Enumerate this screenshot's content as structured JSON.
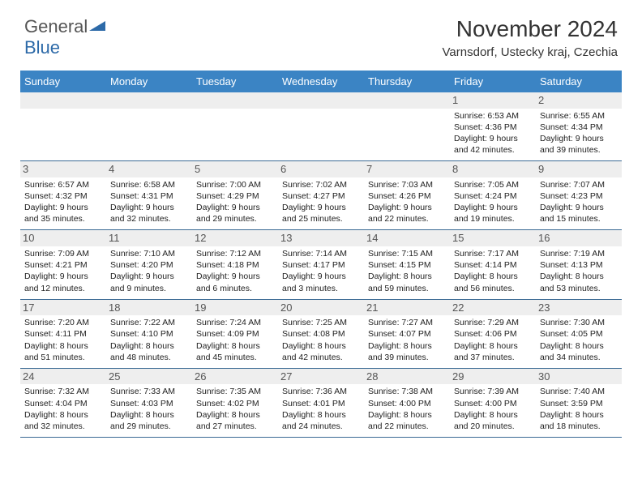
{
  "logo": {
    "part1": "General",
    "part2": "Blue"
  },
  "title": "November 2024",
  "location": "Varnsdorf, Ustecky kraj, Czechia",
  "colors": {
    "header_bg": "#3b84c4",
    "header_text": "#ffffff",
    "daynum_bg": "#eeeeee",
    "border": "#3b6a94",
    "logo_blue": "#2d6aa8",
    "text": "#222222"
  },
  "day_names": [
    "Sunday",
    "Monday",
    "Tuesday",
    "Wednesday",
    "Thursday",
    "Friday",
    "Saturday"
  ],
  "weeks": [
    [
      null,
      null,
      null,
      null,
      null,
      {
        "n": "1",
        "sr": "6:53 AM",
        "ss": "4:36 PM",
        "dl": "9 hours and 42 minutes."
      },
      {
        "n": "2",
        "sr": "6:55 AM",
        "ss": "4:34 PM",
        "dl": "9 hours and 39 minutes."
      }
    ],
    [
      {
        "n": "3",
        "sr": "6:57 AM",
        "ss": "4:32 PM",
        "dl": "9 hours and 35 minutes."
      },
      {
        "n": "4",
        "sr": "6:58 AM",
        "ss": "4:31 PM",
        "dl": "9 hours and 32 minutes."
      },
      {
        "n": "5",
        "sr": "7:00 AM",
        "ss": "4:29 PM",
        "dl": "9 hours and 29 minutes."
      },
      {
        "n": "6",
        "sr": "7:02 AM",
        "ss": "4:27 PM",
        "dl": "9 hours and 25 minutes."
      },
      {
        "n": "7",
        "sr": "7:03 AM",
        "ss": "4:26 PM",
        "dl": "9 hours and 22 minutes."
      },
      {
        "n": "8",
        "sr": "7:05 AM",
        "ss": "4:24 PM",
        "dl": "9 hours and 19 minutes."
      },
      {
        "n": "9",
        "sr": "7:07 AM",
        "ss": "4:23 PM",
        "dl": "9 hours and 15 minutes."
      }
    ],
    [
      {
        "n": "10",
        "sr": "7:09 AM",
        "ss": "4:21 PM",
        "dl": "9 hours and 12 minutes."
      },
      {
        "n": "11",
        "sr": "7:10 AM",
        "ss": "4:20 PM",
        "dl": "9 hours and 9 minutes."
      },
      {
        "n": "12",
        "sr": "7:12 AM",
        "ss": "4:18 PM",
        "dl": "9 hours and 6 minutes."
      },
      {
        "n": "13",
        "sr": "7:14 AM",
        "ss": "4:17 PM",
        "dl": "9 hours and 3 minutes."
      },
      {
        "n": "14",
        "sr": "7:15 AM",
        "ss": "4:15 PM",
        "dl": "8 hours and 59 minutes."
      },
      {
        "n": "15",
        "sr": "7:17 AM",
        "ss": "4:14 PM",
        "dl": "8 hours and 56 minutes."
      },
      {
        "n": "16",
        "sr": "7:19 AM",
        "ss": "4:13 PM",
        "dl": "8 hours and 53 minutes."
      }
    ],
    [
      {
        "n": "17",
        "sr": "7:20 AM",
        "ss": "4:11 PM",
        "dl": "8 hours and 51 minutes."
      },
      {
        "n": "18",
        "sr": "7:22 AM",
        "ss": "4:10 PM",
        "dl": "8 hours and 48 minutes."
      },
      {
        "n": "19",
        "sr": "7:24 AM",
        "ss": "4:09 PM",
        "dl": "8 hours and 45 minutes."
      },
      {
        "n": "20",
        "sr": "7:25 AM",
        "ss": "4:08 PM",
        "dl": "8 hours and 42 minutes."
      },
      {
        "n": "21",
        "sr": "7:27 AM",
        "ss": "4:07 PM",
        "dl": "8 hours and 39 minutes."
      },
      {
        "n": "22",
        "sr": "7:29 AM",
        "ss": "4:06 PM",
        "dl": "8 hours and 37 minutes."
      },
      {
        "n": "23",
        "sr": "7:30 AM",
        "ss": "4:05 PM",
        "dl": "8 hours and 34 minutes."
      }
    ],
    [
      {
        "n": "24",
        "sr": "7:32 AM",
        "ss": "4:04 PM",
        "dl": "8 hours and 32 minutes."
      },
      {
        "n": "25",
        "sr": "7:33 AM",
        "ss": "4:03 PM",
        "dl": "8 hours and 29 minutes."
      },
      {
        "n": "26",
        "sr": "7:35 AM",
        "ss": "4:02 PM",
        "dl": "8 hours and 27 minutes."
      },
      {
        "n": "27",
        "sr": "7:36 AM",
        "ss": "4:01 PM",
        "dl": "8 hours and 24 minutes."
      },
      {
        "n": "28",
        "sr": "7:38 AM",
        "ss": "4:00 PM",
        "dl": "8 hours and 22 minutes."
      },
      {
        "n": "29",
        "sr": "7:39 AM",
        "ss": "4:00 PM",
        "dl": "8 hours and 20 minutes."
      },
      {
        "n": "30",
        "sr": "7:40 AM",
        "ss": "3:59 PM",
        "dl": "8 hours and 18 minutes."
      }
    ]
  ],
  "labels": {
    "sunrise": "Sunrise:",
    "sunset": "Sunset:",
    "daylight": "Daylight:"
  }
}
